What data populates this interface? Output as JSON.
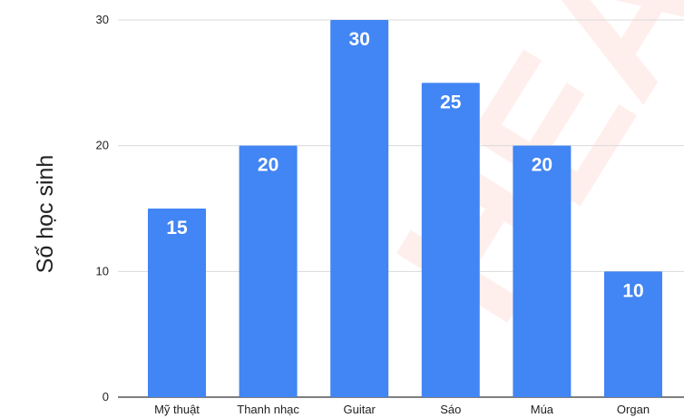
{
  "chart_data": {
    "type": "bar",
    "categories": [
      "Mỹ thuật",
      "Thanh nhạc",
      "Guitar",
      "Sáo",
      "Múa",
      "Organ"
    ],
    "values": [
      15,
      20,
      30,
      25,
      20,
      10
    ],
    "title": "",
    "xlabel": "",
    "ylabel": "Số học sinh",
    "ylim": [
      0,
      30
    ],
    "yticks": [
      0,
      10,
      20,
      30
    ],
    "grid": true,
    "legend": "none",
    "data_labels": true
  },
  "colors": {
    "bar": "#4285f4",
    "grid": "#d9d9d9",
    "axis": "#333333"
  }
}
